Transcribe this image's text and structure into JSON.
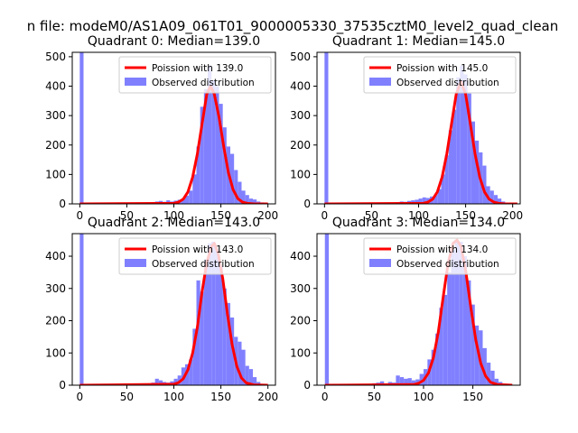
{
  "figure_title": "n file: modeM0/AS1A09_061T01_9000005330_37535cztM0_level2_quad_clean",
  "colors": {
    "fit_line": "#ff0000",
    "hist_bar": "#8080ff",
    "axes": "#000000",
    "background": "#ffffff"
  },
  "legend_labels": {
    "fit_prefix": "Poission with ",
    "observed": "Observed distribution"
  },
  "chart_data": [
    {
      "type": "bar",
      "title": "Quadrant 0: Median=139.0",
      "median": 139.0,
      "fit_label": "Poission with 139.0",
      "xlim": [
        -8,
        208
      ],
      "ylim": [
        0,
        515
      ],
      "xticks": [
        0,
        50,
        100,
        150,
        200
      ],
      "yticks": [
        0,
        100,
        200,
        300,
        400,
        500
      ],
      "legend": "top-right",
      "grid": false,
      "bin_width": 4,
      "hist_x": [
        0,
        80,
        84,
        88,
        92,
        96,
        100,
        104,
        108,
        112,
        116,
        120,
        124,
        128,
        132,
        136,
        140,
        144,
        148,
        152,
        156,
        160,
        164,
        168,
        172,
        176,
        180,
        184,
        188,
        192,
        196
      ],
      "hist_y": [
        515,
        8,
        10,
        7,
        12,
        8,
        11,
        14,
        16,
        28,
        45,
        100,
        195,
        330,
        390,
        470,
        420,
        400,
        340,
        260,
        195,
        170,
        115,
        75,
        45,
        30,
        18,
        15,
        8,
        5,
        3
      ],
      "fit_x": [
        0,
        100,
        105,
        110,
        115,
        120,
        125,
        130,
        135,
        139,
        143,
        148,
        153,
        158,
        163,
        168,
        173,
        178,
        185,
        200
      ],
      "fit_y": [
        0,
        2,
        6,
        16,
        41,
        91,
        170,
        272,
        373,
        400,
        373,
        295,
        195,
        106,
        48,
        18,
        6,
        2,
        0,
        0
      ]
    },
    {
      "type": "bar",
      "title": "Quadrant 1: Median=145.0",
      "median": 145.0,
      "fit_label": "Poission with 145.0",
      "xlim": [
        -8,
        208
      ],
      "ylim": [
        0,
        515
      ],
      "xticks": [
        0,
        50,
        100,
        150,
        200
      ],
      "yticks": [
        0,
        100,
        200,
        300,
        400,
        500
      ],
      "legend": "top-right",
      "grid": false,
      "bin_width": 4,
      "hist_x": [
        0,
        76,
        80,
        84,
        88,
        92,
        96,
        100,
        104,
        108,
        112,
        116,
        120,
        124,
        128,
        132,
        136,
        140,
        144,
        148,
        152,
        156,
        160,
        164,
        168,
        172,
        176,
        180,
        184,
        188,
        192
      ],
      "hist_y": [
        515,
        6,
        8,
        7,
        10,
        12,
        14,
        18,
        22,
        20,
        25,
        30,
        50,
        100,
        165,
        250,
        320,
        430,
        470,
        440,
        375,
        280,
        215,
        175,
        130,
        60,
        45,
        30,
        18,
        8,
        4
      ],
      "fit_x": [
        0,
        105,
        110,
        115,
        120,
        125,
        130,
        135,
        140,
        145,
        150,
        155,
        160,
        165,
        170,
        175,
        180,
        185,
        192,
        205
      ],
      "fit_y": [
        0,
        2,
        6,
        16,
        41,
        91,
        170,
        272,
        373,
        415,
        373,
        272,
        170,
        91,
        41,
        16,
        6,
        2,
        0,
        0
      ]
    },
    {
      "type": "bar",
      "title": "Quadrant 2: Median=143.0",
      "median": 143.0,
      "fit_label": "Poission with 143.0",
      "xlim": [
        -8,
        208
      ],
      "ylim": [
        0,
        470
      ],
      "xticks": [
        0,
        50,
        100,
        150,
        200
      ],
      "yticks": [
        0,
        100,
        200,
        300,
        400
      ],
      "legend": "top-right",
      "grid": false,
      "bin_width": 4,
      "hist_x": [
        0,
        72,
        76,
        80,
        84,
        88,
        92,
        96,
        100,
        104,
        108,
        112,
        116,
        120,
        124,
        128,
        132,
        136,
        140,
        144,
        148,
        152,
        156,
        160,
        164,
        168,
        172,
        176,
        180,
        184,
        188
      ],
      "hist_y": [
        470,
        5,
        8,
        20,
        15,
        10,
        8,
        12,
        20,
        30,
        55,
        65,
        80,
        175,
        325,
        290,
        390,
        440,
        445,
        420,
        370,
        300,
        255,
        210,
        150,
        135,
        110,
        60,
        50,
        25,
        10
      ],
      "fit_x": [
        0,
        100,
        105,
        110,
        115,
        120,
        125,
        130,
        135,
        140,
        143,
        147,
        152,
        157,
        162,
        167,
        172,
        177,
        185,
        200
      ],
      "fit_y": [
        0,
        3,
        8,
        20,
        48,
        100,
        180,
        290,
        380,
        430,
        440,
        410,
        330,
        220,
        125,
        58,
        22,
        7,
        1,
        0
      ]
    },
    {
      "type": "bar",
      "title": "Quadrant 3: Median=134.0",
      "median": 134.0,
      "fit_label": "Poission with 134.0",
      "xlim": [
        -8,
        198
      ],
      "ylim": [
        0,
        470
      ],
      "xticks": [
        0,
        50,
        100,
        150
      ],
      "yticks": [
        0,
        100,
        200,
        300,
        400
      ],
      "legend": "top-right",
      "grid": false,
      "bin_width": 4,
      "hist_x": [
        0,
        48,
        52,
        56,
        60,
        64,
        68,
        72,
        76,
        80,
        84,
        88,
        92,
        96,
        100,
        104,
        108,
        112,
        116,
        120,
        124,
        128,
        132,
        136,
        140,
        144,
        148,
        152,
        156,
        160,
        164,
        168,
        172,
        176
      ],
      "hist_y": [
        470,
        6,
        8,
        12,
        5,
        10,
        8,
        30,
        25,
        20,
        22,
        15,
        18,
        35,
        50,
        80,
        110,
        160,
        240,
        280,
        350,
        420,
        445,
        445,
        400,
        325,
        250,
        185,
        170,
        115,
        70,
        45,
        20,
        10
      ],
      "fit_x": [
        0,
        90,
        95,
        100,
        105,
        110,
        115,
        120,
        125,
        130,
        134,
        138,
        143,
        148,
        153,
        158,
        163,
        168,
        175,
        190
      ],
      "fit_y": [
        0,
        2,
        6,
        15,
        38,
        85,
        165,
        275,
        380,
        440,
        450,
        430,
        350,
        240,
        140,
        68,
        28,
        9,
        2,
        0
      ]
    }
  ]
}
